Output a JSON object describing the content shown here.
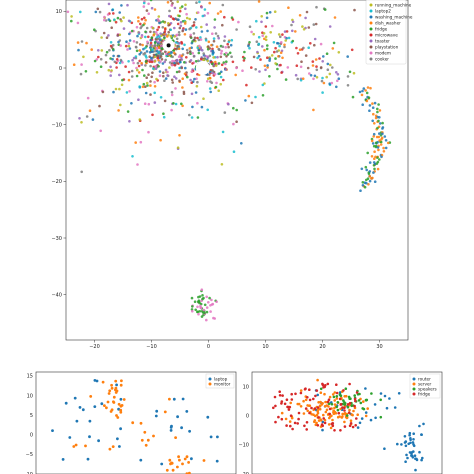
{
  "chart_data": [
    {
      "type": "scatter",
      "xlim": [
        -25,
        35
      ],
      "ylim": [
        -48,
        12
      ],
      "x_ticks": [
        "−20",
        "−10",
        "0",
        "10",
        "20",
        "30"
      ],
      "y_ticks": [
        "10",
        "0",
        "−10",
        "−20",
        "−30",
        "−40"
      ],
      "grid": false,
      "legend_position": "top-right",
      "legend": [
        "running_machine",
        "laptop2",
        "washing_machine",
        "dish_washer",
        "fridge",
        "microwave",
        "toaster",
        "playstation",
        "modem",
        "cooker"
      ],
      "colors": [
        "#bcbd22",
        "#17becf",
        "#1f77b4",
        "#ff7f0e",
        "#2ca02c",
        "#d62728",
        "#9467bd",
        "#8c564b",
        "#e377c2",
        "#7f7f7f"
      ],
      "clusters": [
        {
          "x": -8,
          "y": 4,
          "spread": 10,
          "count": 900,
          "mix": "all"
        },
        {
          "x": 0,
          "y": 1,
          "spread": 3,
          "count": 120,
          "mix": "all"
        },
        {
          "x": 12,
          "y": 3,
          "spread": 5,
          "count": 90,
          "mix": "all"
        },
        {
          "x": 27,
          "y": -12,
          "spread": 3,
          "count": 120,
          "series": [
            "washing_machine",
            "dish_washer",
            "fridge"
          ]
        },
        {
          "x": 20,
          "y": 0,
          "spread": 4,
          "count": 50,
          "mix": "all"
        },
        {
          "x": -1,
          "y": -42,
          "spread": 2,
          "count": 55,
          "series": [
            "fridge",
            "modem"
          ]
        },
        {
          "x": 17,
          "y": 12,
          "spread": 6,
          "count": 30,
          "mix": "all"
        }
      ]
    },
    {
      "type": "scatter",
      "xlim": [
        -10,
        20
      ],
      "ylim": [
        -10,
        16
      ],
      "y_ticks": [
        "15",
        "10",
        "5",
        "0",
        "−5",
        "−10"
      ],
      "legend_position": "top-right",
      "legend": [
        "laptop",
        "monitor"
      ],
      "colors": [
        "#1f77b4",
        "#ff7f0e"
      ],
      "series": [
        {
          "name": "laptop",
          "count": 40
        },
        {
          "name": "monitor",
          "count": 60
        }
      ]
    },
    {
      "type": "scatter",
      "xlim": [
        -10,
        35
      ],
      "ylim": [
        -20,
        15
      ],
      "y_ticks": [
        "10",
        "0",
        "−10",
        "−20"
      ],
      "legend_position": "top-right",
      "legend": [
        "router",
        "server",
        "speakers",
        "fridge"
      ],
      "colors": [
        "#1f77b4",
        "#ff7f0e",
        "#2ca02c",
        "#d62728"
      ],
      "series": [
        {
          "name": "router",
          "count": 70
        },
        {
          "name": "server",
          "count": 120
        },
        {
          "name": "speakers",
          "count": 40
        },
        {
          "name": "fridge",
          "count": 90
        }
      ]
    }
  ]
}
